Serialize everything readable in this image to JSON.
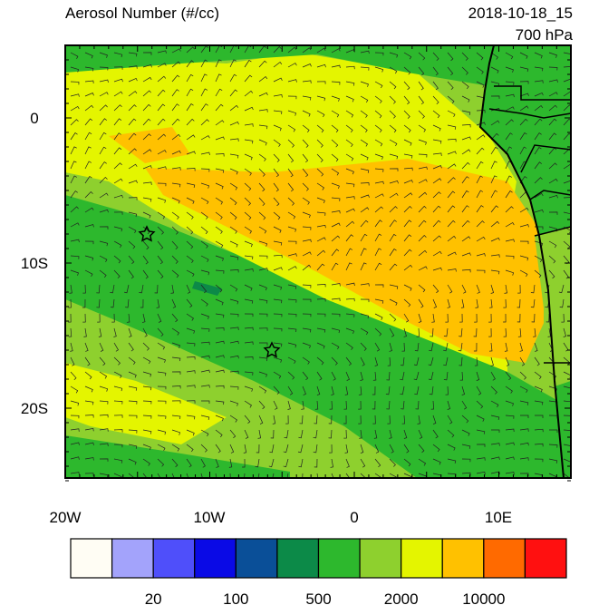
{
  "header": {
    "title": "Aerosol Number (#/cc)",
    "date": "2018-10-18_15",
    "level": "700 hPa"
  },
  "map": {
    "lat_labels": [
      "0",
      "10S",
      "20S"
    ],
    "lon_labels": [
      "20W",
      "10W",
      "0",
      "10E"
    ]
  },
  "colorbar": {
    "colors": [
      "#fffdf4",
      "#a3a3fb",
      "#4f4ffa",
      "#0a0ae6",
      "#0a4f98",
      "#0c8a48",
      "#2db82d",
      "#8ed02e",
      "#e4f500",
      "#ffc100",
      "#ff6a00",
      "#ff1010"
    ],
    "labels": [
      "20",
      "100",
      "500",
      "2000",
      "10000"
    ]
  }
}
